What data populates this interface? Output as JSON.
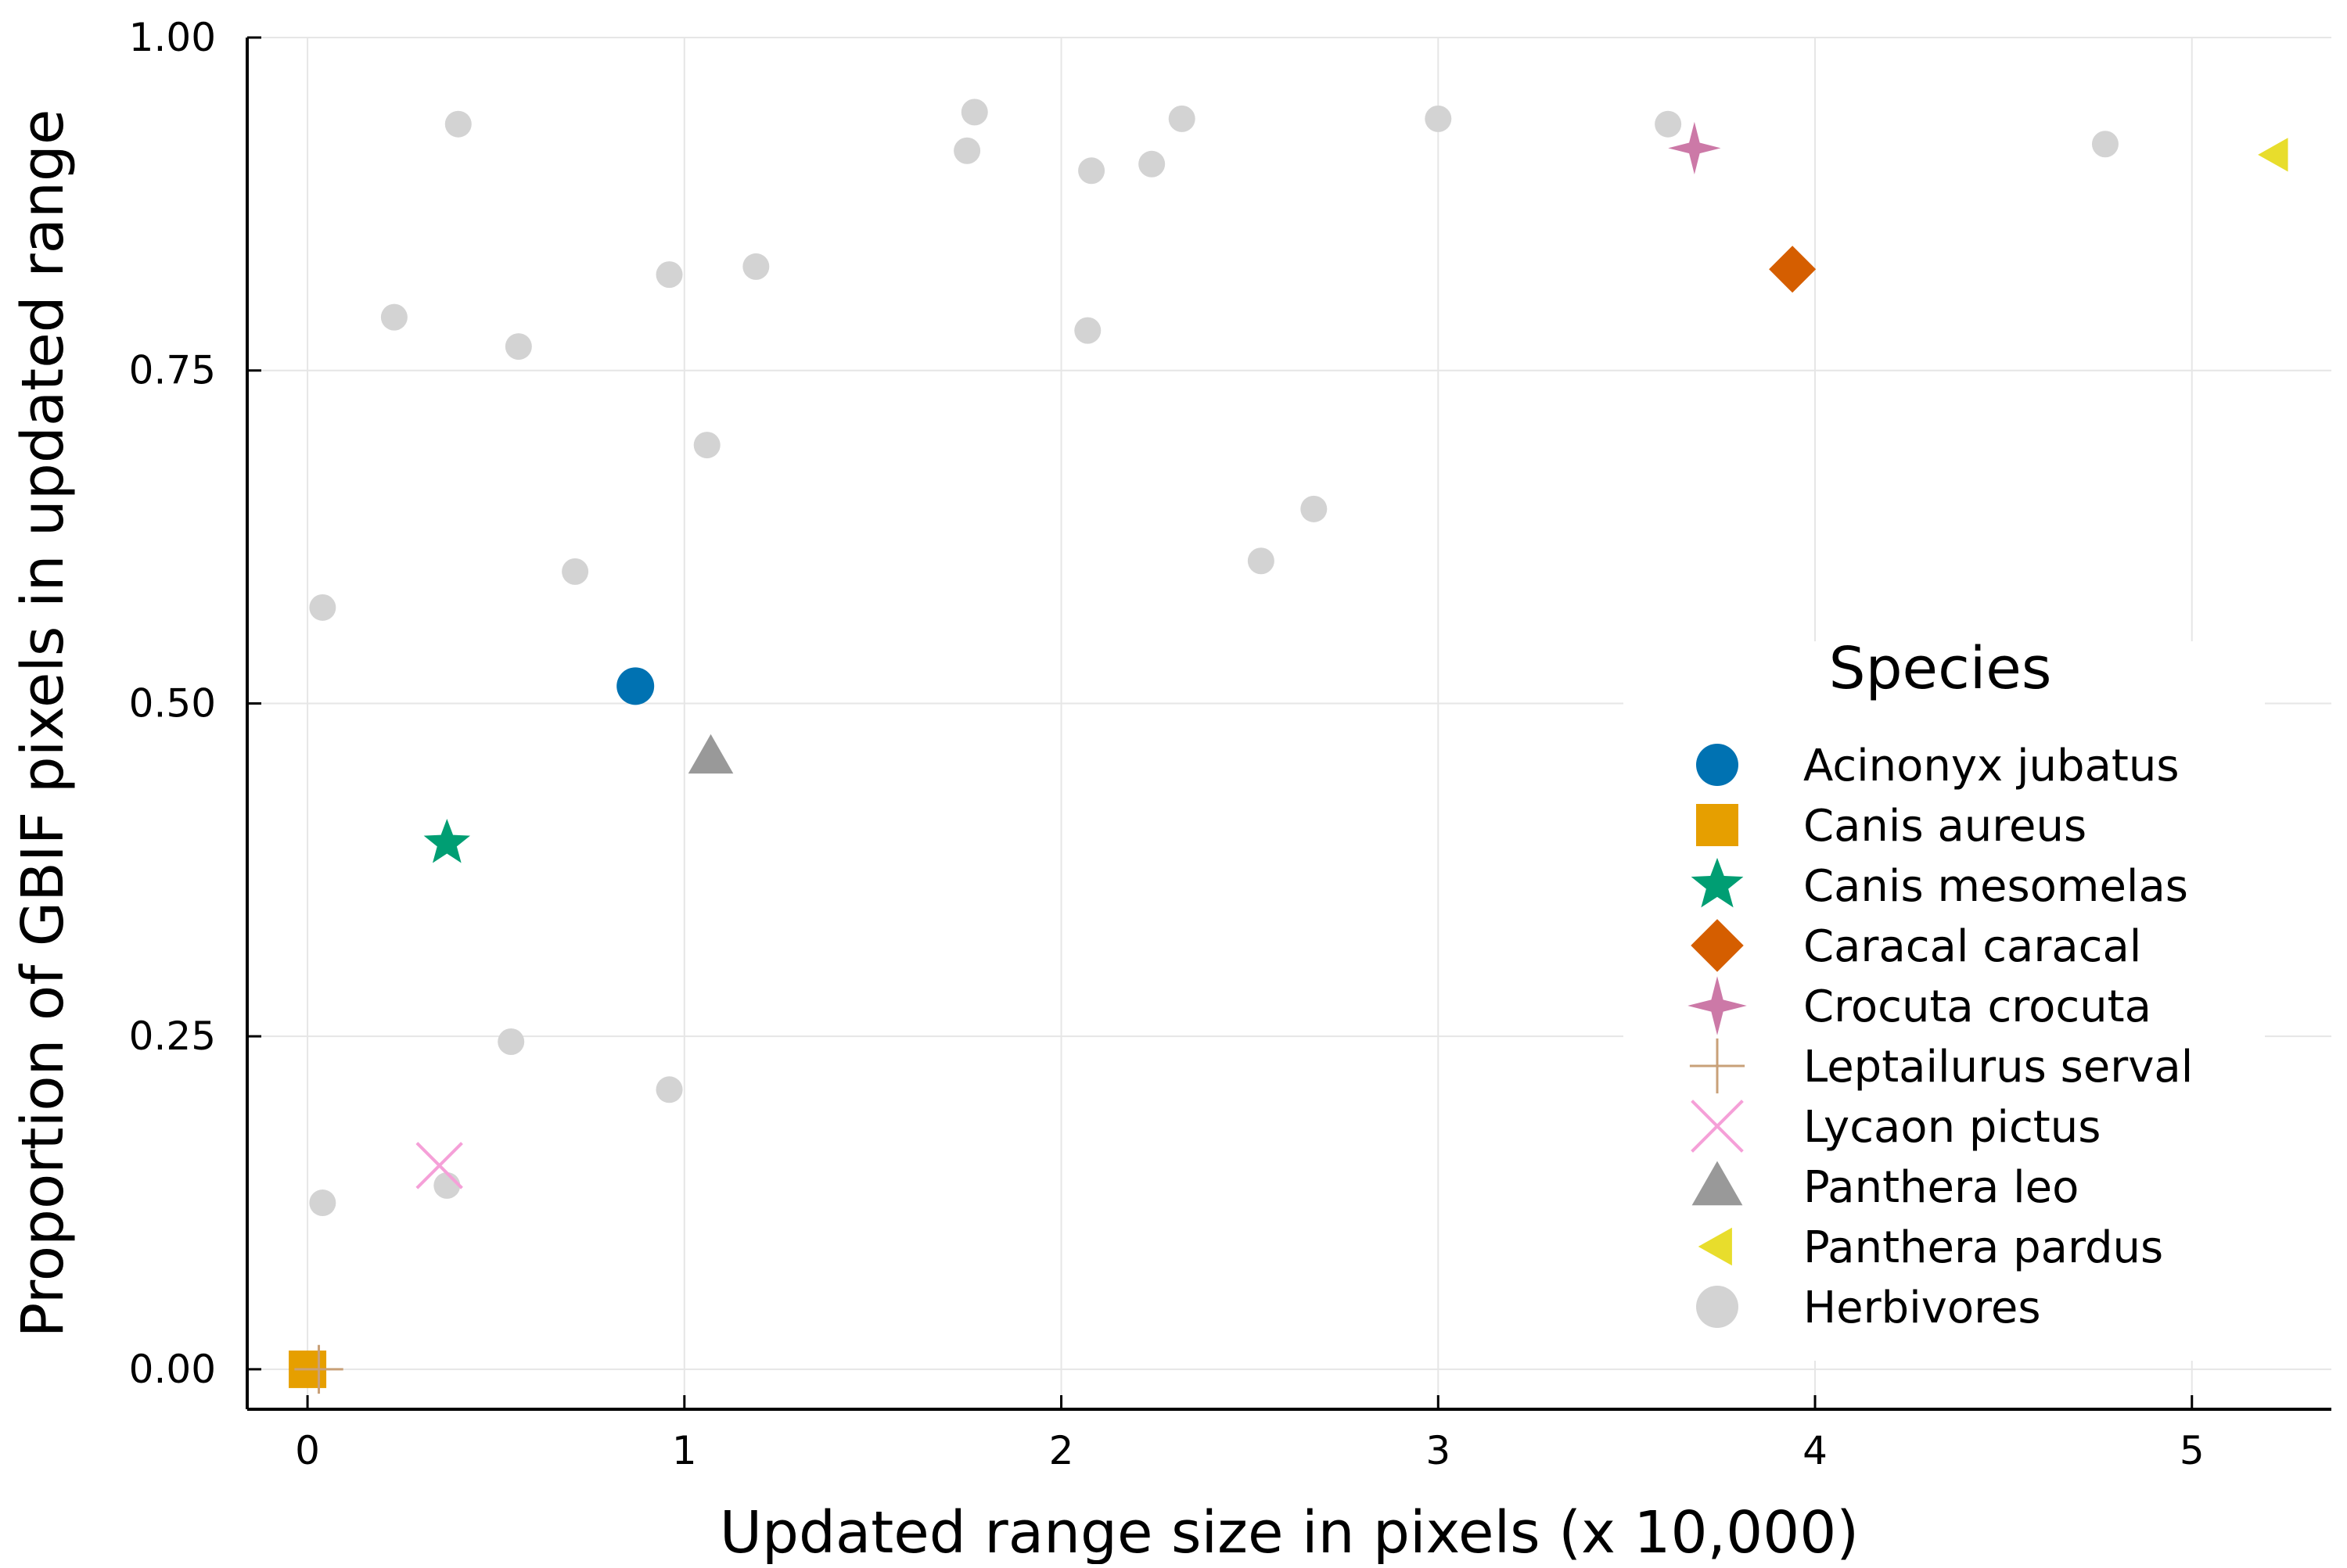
{
  "chart_data": {
    "type": "scatter",
    "xlabel": "Updated range size in pixels (x 10,000)",
    "ylabel": "Proportion of GBIF pixels in updated range",
    "xlim": [
      -0.16,
      5.37
    ],
    "ylim": [
      -0.03,
      1.0
    ],
    "x_ticks": [
      0,
      1,
      2,
      3,
      4,
      5
    ],
    "x_tick_labels": [
      "0",
      "1",
      "2",
      "3",
      "4",
      "5"
    ],
    "y_ticks": [
      0.0,
      0.25,
      0.5,
      0.75,
      1.0
    ],
    "y_tick_labels": [
      "0.00",
      "0.25",
      "0.50",
      "0.75",
      "1.00"
    ],
    "grid": true,
    "legend_title": "Species",
    "legend_position": "right",
    "series": [
      {
        "name": "Acinonyx jubatus",
        "marker": "circle",
        "color": "#0072B2",
        "points": [
          [
            0.87,
            0.513
          ]
        ]
      },
      {
        "name": "Canis aureus",
        "marker": "square",
        "color": "#E69F00",
        "points": [
          [
            0.0,
            0.0
          ]
        ]
      },
      {
        "name": "Canis mesomelas",
        "marker": "star5",
        "color": "#009E73",
        "points": [
          [
            0.37,
            0.395
          ]
        ]
      },
      {
        "name": "Caracal caracal",
        "marker": "diamond",
        "color": "#D55E00",
        "points": [
          [
            3.94,
            0.826
          ]
        ]
      },
      {
        "name": "Crocuta crocuta",
        "marker": "star4",
        "color": "#CC79A7",
        "points": [
          [
            3.68,
            0.917
          ]
        ]
      },
      {
        "name": "Leptailurus serval",
        "marker": "cross",
        "color": "#C8A078",
        "points": [
          [
            0.03,
            0.0
          ]
        ]
      },
      {
        "name": "Lycaon pictus",
        "marker": "xcross",
        "color": "#F5A0D8",
        "points": [
          [
            0.35,
            0.153
          ]
        ]
      },
      {
        "name": "Panthera leo",
        "marker": "utriangle",
        "color": "#999999",
        "points": [
          [
            1.07,
            0.46
          ]
        ]
      },
      {
        "name": "Panthera pardus",
        "marker": "ltriangle",
        "color": "#E8DD2C",
        "points": [
          [
            5.22,
            0.912
          ]
        ]
      },
      {
        "name": "Herbivores",
        "marker": "circle",
        "color": "#D3D3D3",
        "points": [
          [
            0.04,
            0.125
          ],
          [
            0.04,
            0.572
          ],
          [
            0.23,
            0.79
          ],
          [
            0.37,
            0.138
          ],
          [
            0.4,
            0.935
          ],
          [
            0.54,
            0.246
          ],
          [
            0.56,
            0.768
          ],
          [
            0.71,
            0.599
          ],
          [
            0.96,
            0.21
          ],
          [
            0.96,
            0.822
          ],
          [
            1.06,
            0.694
          ],
          [
            1.19,
            0.828
          ],
          [
            1.75,
            0.915
          ],
          [
            1.77,
            0.944
          ],
          [
            2.07,
            0.78
          ],
          [
            2.08,
            0.9
          ],
          [
            2.24,
            0.905
          ],
          [
            2.32,
            0.939
          ],
          [
            2.53,
            0.607
          ],
          [
            2.67,
            0.646
          ],
          [
            3.0,
            0.939
          ],
          [
            3.61,
            0.935
          ],
          [
            4.77,
            0.92
          ]
        ]
      }
    ]
  }
}
